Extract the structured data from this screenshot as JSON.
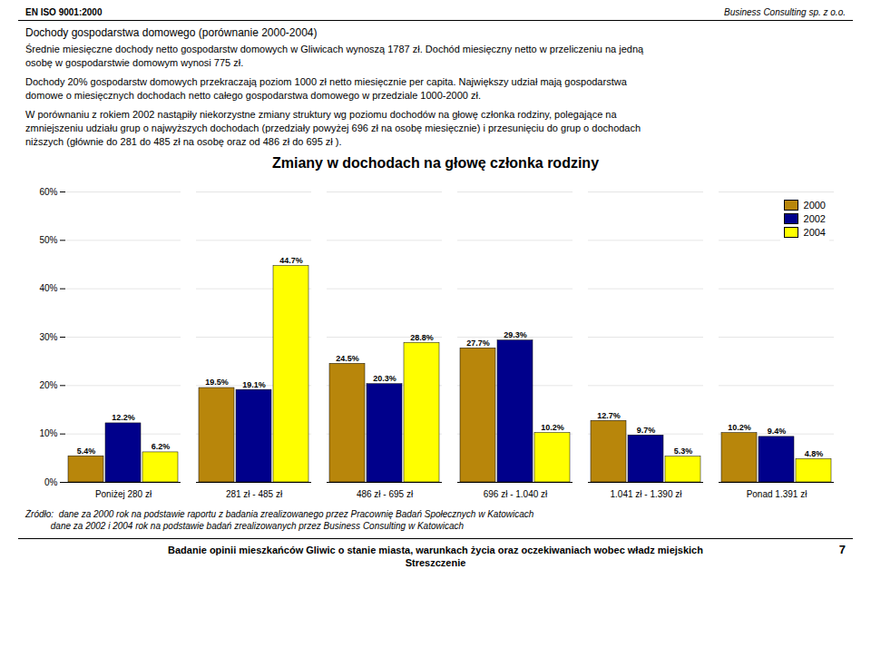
{
  "chart_data": {
    "type": "bar",
    "title": "Zmiany w dochodach na głowę członka rodziny",
    "categories": [
      "Poniżej 280 zł",
      "281 zł - 485 zł",
      "486 zł - 695 zł",
      "696 zł - 1.040 zł",
      "1.041 zł - 1.390 zł",
      "Ponad 1.391 zł"
    ],
    "series": [
      {
        "name": "2000",
        "color": "#B8860B",
        "values": [
          5.4,
          19.5,
          24.5,
          27.7,
          12.7,
          10.2
        ],
        "value_labels": [
          "5.4%",
          "19.5%",
          "24.5%",
          "27.7%",
          "12.7%",
          "10.2%"
        ]
      },
      {
        "name": "2002",
        "color": "#00008B",
        "values": [
          12.2,
          19.1,
          20.3,
          29.3,
          9.7,
          9.4
        ],
        "value_labels": [
          "12.2%",
          "19.1%",
          "20.3%",
          "29.3%",
          "9.7%",
          "9.4%"
        ]
      },
      {
        "name": "2004",
        "color": "#FFFF00",
        "values": [
          6.2,
          44.7,
          28.8,
          10.2,
          5.3,
          4.8
        ],
        "value_labels": [
          "6.2%",
          "44.7%",
          "28.8%",
          "10.2%",
          "5.3%",
          "4.8%"
        ]
      }
    ],
    "ylim": [
      0,
      60
    ],
    "yticks": [
      {
        "value": 0,
        "label": "0%"
      },
      {
        "value": 10,
        "label": "10%"
      },
      {
        "value": 20,
        "label": "20%"
      },
      {
        "value": 30,
        "label": "30%"
      },
      {
        "value": 40,
        "label": "40%"
      },
      {
        "value": 50,
        "label": "50%"
      },
      {
        "value": 60,
        "label": "60%"
      }
    ],
    "grid": true,
    "legend": "upper right",
    "data_labels": true,
    "annotations": [
      "EN ISO 9001:2000",
      "Business Consulting sp. z o.o.",
      "Dochody gospodarstwa domowego (porównanie 2000-2004)",
      "Średnie miesięczne dochody netto gospodarstw domowych w Gliwicach wynoszą 1787 zł. Dochód miesięczny netto w przeliczeniu na jedną\nosobę w gospodarstwie domowym wynosi 775 zł.",
      "Dochody 20% gospodarstw domowych przekraczają poziom 1000 zł netto miesięcznie per capita. Największy udział mają gospodarstwa\ndomowe o miesięcznych dochodach netto całego gospodarstwa domowego w przedziale 1000-2000 zł.",
      "W porównaniu z rokiem 2002 nastąpiły niekorzystne zmiany struktury wg poziomu dochodów na głowę członka rodziny, polegające na\nzmniejszeniu udziału grup o najwyższych dochodach (przedziały powyżej 696 zł na osobę miesięcznie) i przesunięciu do grup o dochodach\nniższych (głównie do 281 do 485 zł na osobę oraz od 486 zł do 695 zł ).",
      "Źródło:  dane za 2000 rok na podstawie raportu z badania zrealizowanego przez Pracownię Badań Społecznych w Katowicach",
      "          dane za 2002 i 2004 rok na podstawie badań zrealizowanych przez Business Consulting w Katowicach",
      "Badanie opinii mieszkańców Gliwic o stanie miasta, warunkach życia oraz oczekiwaniach wobec władz miejskich",
      "Streszczenie",
      "7"
    ]
  }
}
